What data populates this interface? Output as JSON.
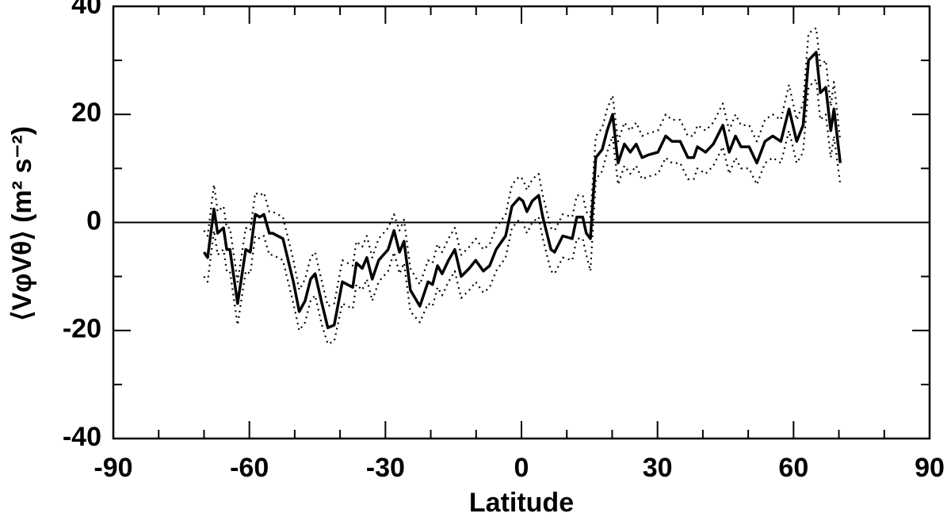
{
  "chart_data": {
    "type": "line",
    "xlabel": "Latitude",
    "ylabel": "⟨VφVθ⟩ (m² s⁻²)",
    "x": [
      -70,
      -69.2,
      -67.8,
      -67,
      -65.7,
      -65,
      -64.3,
      -62.6,
      -60.8,
      -59.8,
      -58.7,
      -57.7,
      -56.8,
      -55.6,
      -54.9,
      -52.6,
      -50.3,
      -49,
      -47.7,
      -46.5,
      -45.5,
      -44,
      -42.7,
      -41.3,
      -39.5,
      -37.2,
      -36.4,
      -35.1,
      -34.1,
      -32.9,
      -31.5,
      -29.4,
      -28.1,
      -26.9,
      -25.9,
      -24.5,
      -22.4,
      -20.6,
      -19.6,
      -18.5,
      -17.5,
      -16.1,
      -14.7,
      -13.3,
      -11.5,
      -10.1,
      -8.4,
      -7,
      -5.6,
      -3.5,
      -2.1,
      -0.5,
      0.3,
      1.2,
      2.4,
      3.8,
      4.7,
      6.5,
      7.3,
      9.1,
      11.2,
      12.2,
      13.5,
      14.3,
      15.2,
      16.4,
      17.8,
      18.9,
      20.1,
      21.3,
      22.7,
      24,
      25.3,
      26.6,
      28,
      30.1,
      31.8,
      33.2,
      35,
      36.7,
      38,
      38.8,
      40.6,
      42.3,
      44.4,
      45.8,
      47.2,
      48.4,
      50.2,
      51.9,
      53.7,
      55.4,
      57.2,
      59,
      60.7,
      62.1,
      63.3,
      65,
      65.9,
      67.1,
      68.2,
      68.9,
      70.3
    ],
    "series": [
      {
        "color": "#000000",
        "style": "solid",
        "values": [
          -5.5,
          -6.5,
          2.5,
          -2,
          -1,
          -5,
          -5,
          -15,
          -5,
          -5.5,
          1.5,
          1,
          1.5,
          -2,
          -2,
          -3,
          -11,
          -16.5,
          -14.5,
          -10.5,
          -9.5,
          -15,
          -19.5,
          -19,
          -11,
          -12,
          -7.5,
          -8.5,
          -6.5,
          -10.5,
          -7,
          -5,
          -1.5,
          -5.5,
          -3.5,
          -12.5,
          -15.5,
          -11,
          -11.5,
          -8,
          -9.5,
          -7,
          -5,
          -10,
          -8.5,
          -7,
          -9,
          -8,
          -5,
          -2.5,
          3,
          4.5,
          4,
          2,
          4,
          5,
          1,
          -5,
          -5.5,
          -2.5,
          -3,
          1,
          1,
          -2,
          -3,
          12,
          13.5,
          17,
          20,
          11,
          14.5,
          13,
          14.5,
          12,
          12.5,
          13,
          16,
          15,
          15,
          12,
          12,
          14,
          13,
          14.5,
          18,
          13,
          16,
          14,
          14,
          11,
          15,
          16,
          15,
          21,
          15,
          18,
          30,
          31.5,
          24,
          25,
          17,
          21,
          11
        ]
      },
      {
        "color": "#000000",
        "style": "dotted",
        "values": [
          -1.5,
          -2.5,
          7,
          2,
          3,
          -1,
          -1,
          -11,
          -1,
          -1.5,
          5.5,
          5,
          5.5,
          2,
          2,
          1,
          -7,
          -12.5,
          -10.5,
          -6.5,
          -5.5,
          -11,
          -15.5,
          -15,
          -7,
          -8,
          -3.5,
          -4.5,
          -2.5,
          -6.5,
          -3,
          -1,
          1.5,
          -1.5,
          0.5,
          -8.5,
          -11.5,
          -7,
          -7.5,
          -4,
          -5.5,
          -3,
          -1,
          -6,
          -4.5,
          -3,
          -5,
          -4,
          -1,
          1.5,
          7,
          8.5,
          8,
          6,
          8,
          9,
          5,
          -1,
          -1.5,
          1.5,
          1,
          5,
          5,
          2,
          1,
          16,
          17.5,
          21,
          23.5,
          15,
          18.5,
          17,
          18.5,
          16,
          16.5,
          17,
          20,
          19,
          19,
          16,
          16,
          18,
          17,
          18.5,
          22,
          17,
          20,
          18,
          18,
          15,
          19,
          20,
          19,
          25.5,
          19,
          22,
          35,
          36,
          29,
          30,
          21.5,
          26,
          15
        ]
      },
      {
        "color": "#000000",
        "style": "dotted",
        "values": [
          -10,
          -11,
          -1.5,
          -6,
          -5,
          -9,
          -9,
          -19,
          -9,
          -9.5,
          -2.5,
          -3,
          -2.5,
          -6,
          -6,
          -7,
          -15,
          -20,
          -18.5,
          -14.5,
          -13.5,
          -19,
          -22.5,
          -22,
          -15,
          -16,
          -11.5,
          -12.5,
          -10.5,
          -14.5,
          -11,
          -9,
          -5.5,
          -9.5,
          -7.5,
          -16.5,
          -18.5,
          -15,
          -15.5,
          -12,
          -13.5,
          -11,
          -9,
          -14,
          -12.5,
          -11,
          -13,
          -12,
          -9,
          -6.5,
          -1,
          0.5,
          0,
          -2,
          0,
          1,
          -3,
          -9,
          -9.5,
          -6.5,
          -7,
          -3,
          -3,
          -6,
          -9,
          8,
          9.5,
          13,
          16,
          7,
          10.5,
          9,
          10.5,
          8,
          8.5,
          9,
          12,
          11,
          11,
          8,
          8,
          10,
          9,
          10.5,
          14,
          9,
          12,
          10,
          10,
          7,
          11,
          12,
          11,
          17,
          11,
          13,
          25,
          26.5,
          19,
          20,
          12,
          16,
          7
        ]
      }
    ],
    "hline": 0,
    "xlim": [
      -90,
      90
    ],
    "xticks": [
      -90,
      -60,
      -30,
      0,
      30,
      60,
      90
    ],
    "xticks_minor": [
      -80,
      -70,
      -50,
      -40,
      -20,
      -10,
      10,
      20,
      40,
      50,
      70,
      80
    ],
    "ylim": [
      -40,
      40
    ],
    "yticks": [
      -40,
      -20,
      0,
      20,
      40
    ],
    "yticks_minor": [
      -30,
      -10,
      10,
      30
    ]
  }
}
